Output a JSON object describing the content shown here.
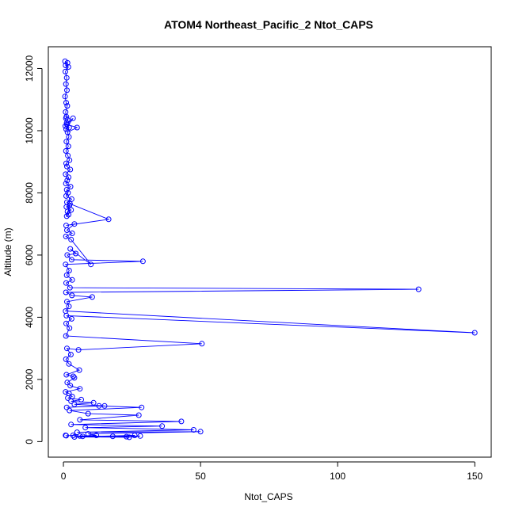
{
  "chart_data": {
    "type": "line",
    "title": "ATOM4 Northeast_Pacific_2 Ntot_CAPS",
    "xlabel": "Ntot_CAPS",
    "ylabel": "Altitude (m)",
    "xlim": [
      -5.5,
      156
    ],
    "ylim": [
      -500,
      12700
    ],
    "x_ticks": [
      0,
      50,
      100,
      150
    ],
    "y_ticks": [
      0,
      2000,
      4000,
      6000,
      8000,
      10000,
      12000
    ],
    "x_tick_labels": [
      "0",
      "50",
      "100",
      "150"
    ],
    "y_tick_labels": [
      "0",
      "2000",
      "4000",
      "6000",
      "8000",
      "10000",
      "12000"
    ],
    "grid": false,
    "legend": "none",
    "color": "#0000ff",
    "marker": "open-circle",
    "series": [
      {
        "x": [
          0.6,
          1.5,
          0.8,
          1.8,
          0.7,
          1.2,
          0.9,
          1.3,
          0.6,
          1.0,
          1.4,
          0.8,
          1.1,
          0.9,
          1.5,
          1.2,
          0.7,
          2.1,
          1.0,
          3.5,
          1.3,
          5.0,
          1.5,
          2.0,
          1.1,
          1.8,
          0.9,
          1.6,
          2.2,
          1.0,
          1.3,
          2.5,
          0.8,
          1.9,
          1.4,
          0.9,
          2.6,
          1.2,
          1.7,
          1.0,
          3.0,
          1.3,
          2.2,
          1.1,
          2.8,
          1.5,
          1.9,
          1.2,
          2.4,
          16.5,
          1.0,
          4.0,
          1.3,
          3.2,
          0.9,
          2.8,
          10.0,
          2.5,
          4.5,
          1.4,
          3.0,
          29.0,
          0.8,
          2.1,
          1.2,
          3.2,
          1.0,
          2.4,
          129.5,
          0.9,
          3.1,
          10.5,
          1.3,
          2.0,
          0.8,
          150.0,
          1.1,
          3.0,
          1.0,
          2.2,
          0.9,
          50.5,
          5.5,
          1.3,
          2.7,
          0.9,
          2.0,
          5.8,
          1.1,
          3.6,
          4.0,
          1.4,
          2.5,
          6.0,
          0.8,
          2.0,
          3.2,
          1.6,
          6.5,
          2.8,
          11.0,
          4.0,
          15.0,
          1.2,
          13.0,
          28.5,
          2.2,
          9.0,
          27.5,
          6.0,
          43.0,
          2.8,
          36.0,
          8.0,
          47.5,
          5.0,
          50.0,
          9.0,
          12.0,
          6.0,
          18.0,
          23.0,
          26.0,
          4.0,
          24.0,
          28.0,
          7.0,
          3.5,
          1.0,
          0.8
        ],
        "y": [
          12230,
          12180,
          12100,
          12050,
          11900,
          11700,
          11500,
          11300,
          11100,
          10900,
          10800,
          10600,
          10450,
          10400,
          10350,
          10250,
          10150,
          10100,
          10050,
          10400,
          10200,
          10100,
          9950,
          9800,
          9650,
          9500,
          9350,
          9200,
          9050,
          8950,
          8850,
          8750,
          8600,
          8500,
          8400,
          8300,
          8200,
          8100,
          8000,
          7900,
          7800,
          7700,
          7600,
          7550,
          7450,
          7400,
          7300,
          7250,
          7650,
          7150,
          6950,
          7000,
          6800,
          6700,
          6600,
          6500,
          5700,
          6200,
          6050,
          6000,
          5850,
          5800,
          5700,
          5500,
          5350,
          5200,
          5100,
          4950,
          4900,
          4800,
          4700,
          4650,
          4500,
          4350,
          4200,
          3500,
          4050,
          3950,
          3800,
          3650,
          3400,
          3150,
          2950,
          3000,
          2800,
          2650,
          2500,
          2300,
          2150,
          2100,
          2050,
          1900,
          1800,
          1700,
          1600,
          1550,
          1450,
          1400,
          1350,
          1300,
          1250,
          1200,
          1150,
          1100,
          1150,
          1100,
          1000,
          900,
          850,
          700,
          650,
          550,
          500,
          450,
          380,
          300,
          320,
          250,
          200,
          180,
          170,
          160,
          200,
          150,
          140,
          180,
          170,
          200,
          190,
          200
        ]
      }
    ]
  }
}
